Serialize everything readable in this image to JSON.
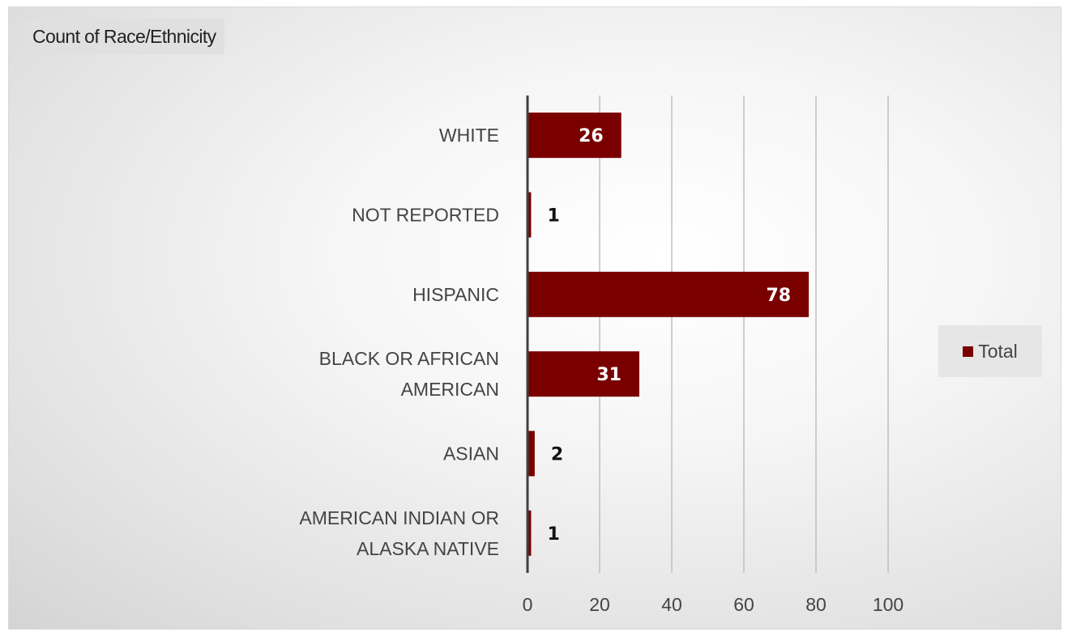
{
  "pivot_field_button": "Count of Race/Ethnicity",
  "colors": {
    "bar": "#7a0000",
    "label_inside": "#ffffff",
    "label_outside": "#111111",
    "gridline": "#bfbfbf",
    "axis": "#404040"
  },
  "chart_data": {
    "type": "bar",
    "orientation": "horizontal",
    "categories": [
      [
        "WHITE"
      ],
      [
        "NOT REPORTED"
      ],
      [
        "HISPANIC"
      ],
      [
        "BLACK OR AFRICAN",
        "AMERICAN"
      ],
      [
        "ASIAN"
      ],
      [
        "AMERICAN INDIAN OR",
        "ALASKA NATIVE"
      ]
    ],
    "series": [
      {
        "name": "Total",
        "values": [
          26,
          1,
          78,
          31,
          2,
          1
        ]
      }
    ],
    "x_ticks": [
      0,
      20,
      40,
      60,
      80,
      100
    ],
    "xlim": [
      0,
      100
    ],
    "grid": true,
    "data_labels": true,
    "legend_position": "right"
  }
}
